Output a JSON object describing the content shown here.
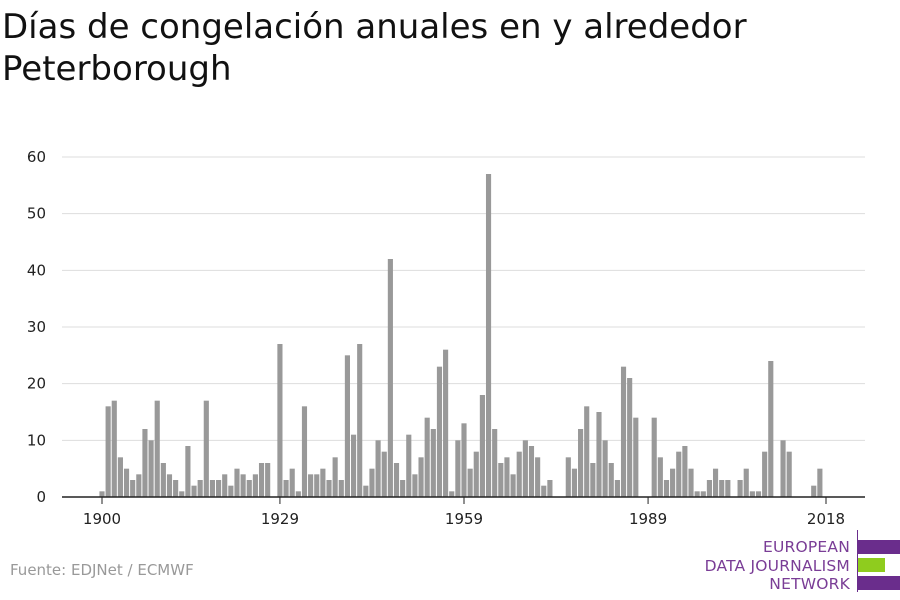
{
  "page": {
    "title": "Días de congelación anuales en y alrededor Peterborough",
    "source": "Fuente: EDJNet / ECMWF"
  },
  "logo": {
    "line1": "EUROPEAN",
    "line2": "DATA JOURNALISM",
    "line3": "NETWORK",
    "text_color": "#7a3d96",
    "bar_purple": "#6a2d8c",
    "bar_green": "#8fcc1e"
  },
  "colors": {
    "bar": "#999999",
    "grid": "#dddddd",
    "axis": "#222222",
    "tick_text": "#222222"
  },
  "chart_data": {
    "type": "bar",
    "title": "Días de congelación anuales en y alrededor Peterborough",
    "xlabel": "",
    "ylabel": "",
    "ylim": [
      0,
      60
    ],
    "y_ticks": [
      0,
      10,
      20,
      30,
      40,
      50,
      60
    ],
    "x_tick_labels": [
      "1900",
      "1929",
      "1959",
      "1989",
      "2018"
    ],
    "grid": true,
    "x": [
      1900,
      1901,
      1902,
      1903,
      1904,
      1905,
      1906,
      1907,
      1908,
      1909,
      1910,
      1911,
      1912,
      1913,
      1914,
      1915,
      1916,
      1917,
      1918,
      1919,
      1920,
      1921,
      1922,
      1923,
      1924,
      1925,
      1926,
      1927,
      1928,
      1929,
      1930,
      1931,
      1932,
      1933,
      1934,
      1935,
      1936,
      1937,
      1938,
      1939,
      1940,
      1941,
      1942,
      1943,
      1944,
      1945,
      1946,
      1947,
      1948,
      1949,
      1950,
      1951,
      1952,
      1953,
      1954,
      1955,
      1956,
      1957,
      1958,
      1959,
      1960,
      1961,
      1962,
      1963,
      1964,
      1965,
      1966,
      1967,
      1968,
      1969,
      1970,
      1971,
      1972,
      1973,
      1974,
      1975,
      1976,
      1977,
      1978,
      1979,
      1980,
      1981,
      1982,
      1983,
      1984,
      1985,
      1986,
      1987,
      1988,
      1989,
      1990,
      1991,
      1992,
      1993,
      1994,
      1995,
      1996,
      1997,
      1998,
      1999,
      2000,
      2001,
      2002,
      2003,
      2004,
      2005,
      2006,
      2007,
      2008,
      2009,
      2010,
      2011,
      2012,
      2013,
      2014,
      2015,
      2016,
      2017,
      2018
    ],
    "values": [
      1,
      16,
      17,
      7,
      5,
      3,
      4,
      12,
      10,
      17,
      6,
      4,
      3,
      1,
      9,
      2,
      3,
      17,
      3,
      3,
      4,
      2,
      5,
      4,
      3,
      4,
      6,
      6,
      0,
      27,
      3,
      5,
      1,
      16,
      4,
      4,
      5,
      3,
      7,
      3,
      25,
      11,
      27,
      2,
      5,
      10,
      8,
      42,
      6,
      3,
      11,
      4,
      7,
      14,
      12,
      23,
      26,
      1,
      10,
      13,
      5,
      8,
      18,
      57,
      12,
      6,
      7,
      4,
      8,
      10,
      9,
      7,
      2,
      3,
      0,
      0,
      7,
      5,
      12,
      16,
      6,
      15,
      10,
      6,
      3,
      23,
      21,
      14,
      0,
      0,
      14,
      7,
      3,
      5,
      8,
      9,
      5,
      1,
      1,
      3,
      5,
      3,
      3,
      0,
      3,
      5,
      1,
      1,
      8,
      24,
      0,
      10,
      8,
      0,
      0,
      0,
      2,
      5,
      0
    ]
  }
}
